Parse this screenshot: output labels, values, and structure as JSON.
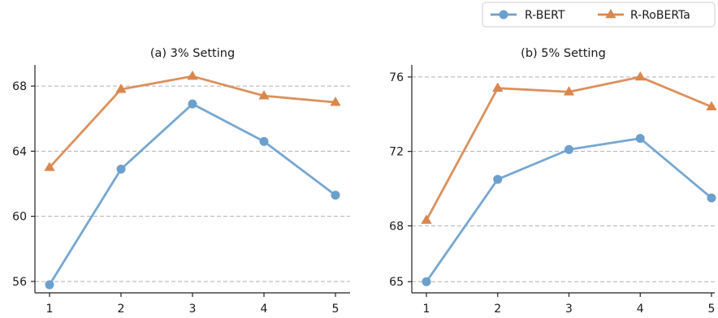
{
  "legend": {
    "placement": "top-right",
    "entries": [
      {
        "label": "R-BERT",
        "marker": "circle",
        "color": "#6b9fcd"
      },
      {
        "label": "R-RoBERTa",
        "marker": "triangle",
        "color": "#d9874f"
      }
    ]
  },
  "chart_data": [
    {
      "type": "line",
      "title": "(a) 3% Setting",
      "x": [
        1,
        2,
        3,
        4,
        5
      ],
      "xticks": [
        "1",
        "2",
        "3",
        "4",
        "5"
      ],
      "yticks": [
        56,
        60,
        64,
        68
      ],
      "ylim": [
        55.3,
        69.3
      ],
      "grid": "horizontal dashed at y ticks",
      "series": [
        {
          "name": "R-BERT",
          "values": [
            55.8,
            62.9,
            66.9,
            64.6,
            61.3
          ],
          "color": "#6b9fcd",
          "marker": "circle"
        },
        {
          "name": "R-RoBERTa",
          "values": [
            63.0,
            67.8,
            68.6,
            67.4,
            67.0
          ],
          "color": "#d9874f",
          "marker": "triangle"
        }
      ]
    },
    {
      "type": "line",
      "title": "(b) 5% Setting",
      "x": [
        1,
        2,
        3,
        4,
        5
      ],
      "xticks": [
        "1",
        "2",
        "3",
        "4",
        "5"
      ],
      "yticks": [
        65,
        68,
        72,
        76
      ],
      "ylim": [
        64.4,
        76.65
      ],
      "grid": "horizontal dashed at y ticks",
      "series": [
        {
          "name": "R-BERT",
          "values": [
            65.0,
            70.5,
            72.1,
            72.7,
            69.5
          ],
          "color": "#6b9fcd",
          "marker": "circle"
        },
        {
          "name": "R-RoBERTa",
          "values": [
            68.3,
            75.4,
            75.2,
            76.0,
            74.4
          ],
          "color": "#d9874f",
          "marker": "triangle"
        }
      ]
    }
  ]
}
